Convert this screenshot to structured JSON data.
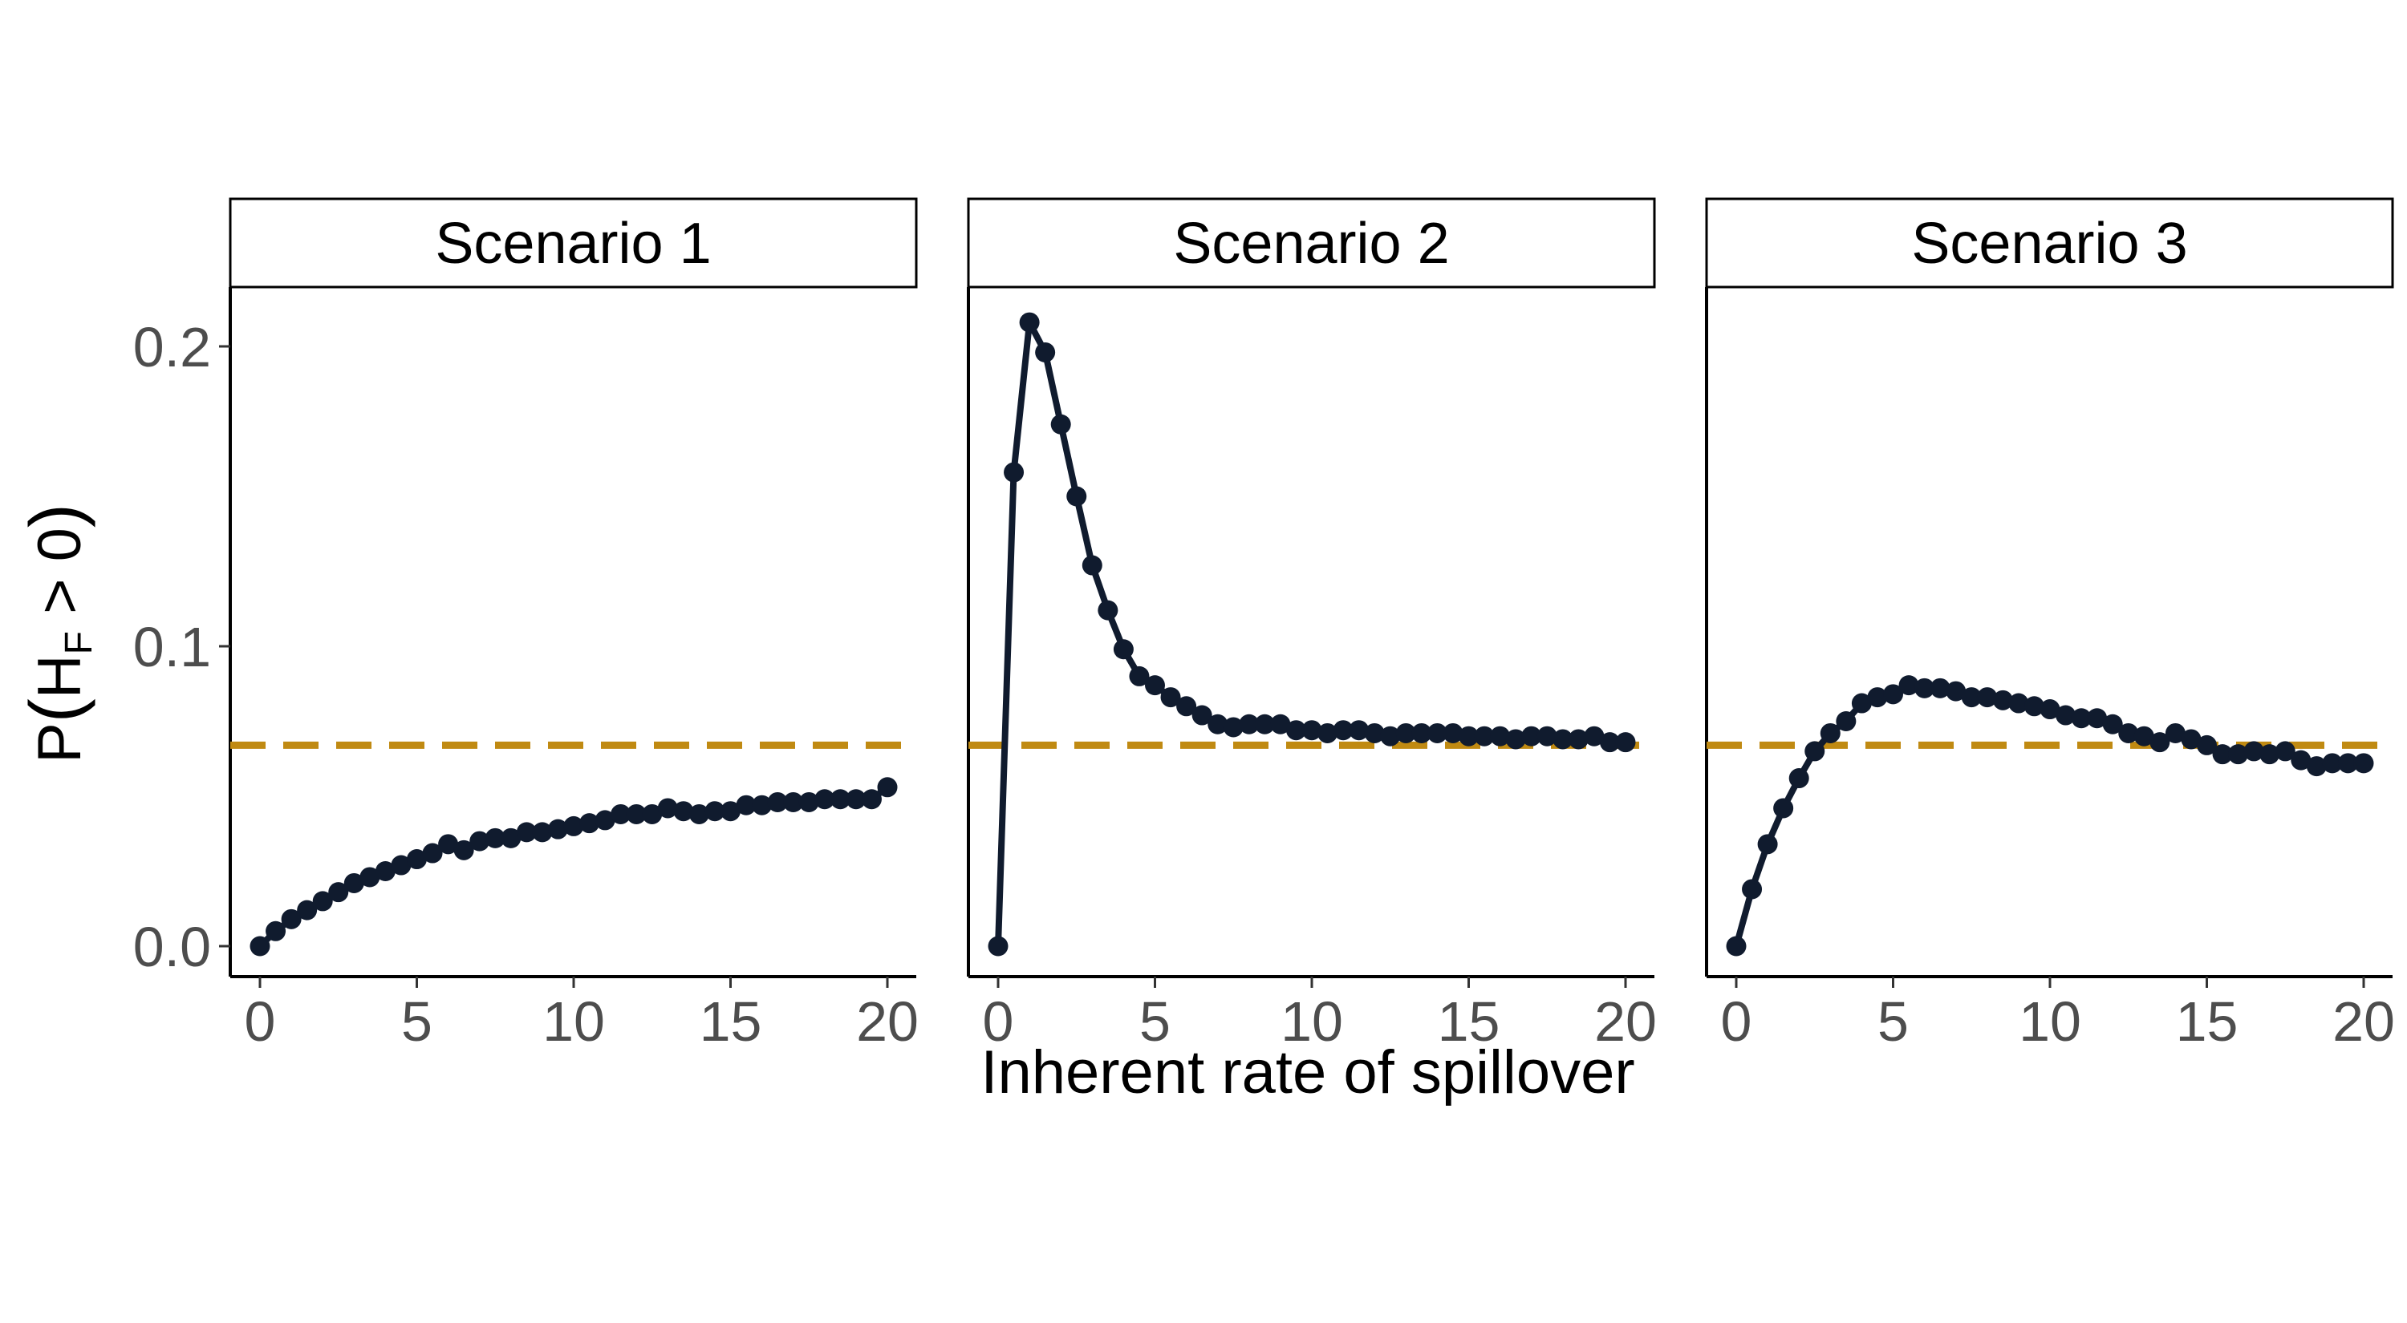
{
  "chart_data": {
    "type": "line",
    "panels": [
      "Scenario 1",
      "Scenario 2",
      "Scenario 3"
    ],
    "xlabel": "Inherent rate of spillover",
    "ylabel": {
      "prefix": "P",
      "H": "H",
      "sub": "F",
      "suffix": " > 0"
    },
    "xlim": [
      0,
      20
    ],
    "ylim": [
      0,
      0.2
    ],
    "x_ticks": [
      "0",
      "5",
      "10",
      "15",
      "20"
    ],
    "y_ticks": [
      "0.0",
      "0.1",
      "0.2"
    ],
    "reference_line": {
      "value": 0.067,
      "style": "dashed",
      "color": "#C08A12"
    },
    "line_color": "#101b2e",
    "x": [
      0,
      0.5,
      1,
      1.5,
      2,
      2.5,
      3,
      3.5,
      4,
      4.5,
      5,
      5.5,
      6,
      6.5,
      7,
      7.5,
      8,
      8.5,
      9,
      9.5,
      10,
      10.5,
      11,
      11.5,
      12,
      12.5,
      13,
      13.5,
      14,
      14.5,
      15,
      15.5,
      16,
      16.5,
      17,
      17.5,
      18,
      18.5,
      19,
      19.5,
      20
    ],
    "series": [
      {
        "values": [
          0,
          0.005,
          0.009,
          0.012,
          0.015,
          0.018,
          0.021,
          0.023,
          0.025,
          0.027,
          0.029,
          0.031,
          0.034,
          0.032,
          0.035,
          0.036,
          0.036,
          0.038,
          0.038,
          0.039,
          0.04,
          0.041,
          0.042,
          0.044,
          0.044,
          0.044,
          0.046,
          0.045,
          0.044,
          0.045,
          0.045,
          0.047,
          0.047,
          0.048,
          0.048,
          0.048,
          0.049,
          0.049,
          0.049,
          0.049,
          0.053
        ]
      },
      {
        "values": [
          0,
          0.158,
          0.208,
          0.198,
          0.174,
          0.15,
          0.127,
          0.112,
          0.099,
          0.09,
          0.087,
          0.083,
          0.08,
          0.077,
          0.074,
          0.073,
          0.074,
          0.074,
          0.074,
          0.072,
          0.072,
          0.071,
          0.072,
          0.072,
          0.071,
          0.07,
          0.071,
          0.071,
          0.071,
          0.071,
          0.07,
          0.07,
          0.07,
          0.069,
          0.07,
          0.07,
          0.069,
          0.069,
          0.07,
          0.068,
          0.068
        ]
      },
      {
        "values": [
          0,
          0.019,
          0.034,
          0.046,
          0.056,
          0.065,
          0.071,
          0.075,
          0.081,
          0.083,
          0.084,
          0.087,
          0.086,
          0.086,
          0.085,
          0.083,
          0.083,
          0.082,
          0.081,
          0.08,
          0.079,
          0.077,
          0.076,
          0.076,
          0.074,
          0.071,
          0.07,
          0.068,
          0.071,
          0.069,
          0.067,
          0.064,
          0.064,
          0.065,
          0.064,
          0.065,
          0.062,
          0.06,
          0.061,
          0.061,
          0.061
        ]
      }
    ]
  }
}
